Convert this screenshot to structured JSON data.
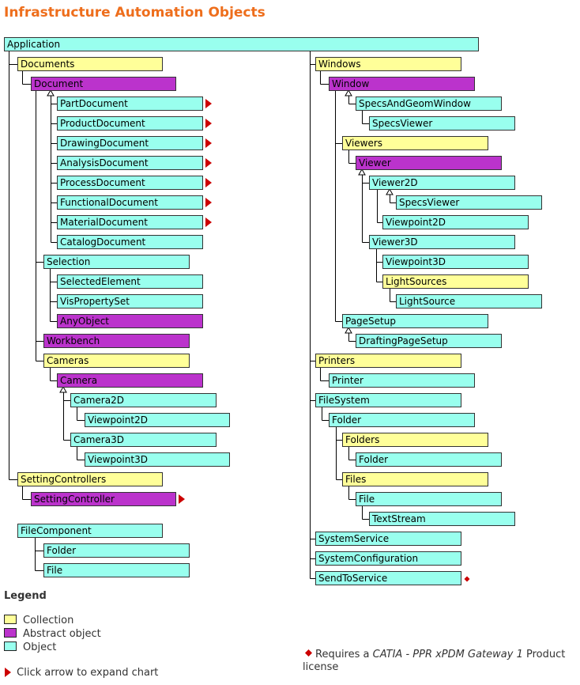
{
  "title": "Infrastructure Automation Objects",
  "colors": {
    "collection": "#ffff99",
    "abstract": "#bb33cc",
    "object": "#99ffee",
    "title": "#ee6e1c",
    "arrow": "#cc0000"
  },
  "boxes": [
    {
      "id": "application",
      "label": "Application",
      "kind": "object"
    },
    {
      "id": "documents",
      "label": "Documents",
      "kind": "collection"
    },
    {
      "id": "document",
      "label": "Document",
      "kind": "abstract"
    },
    {
      "id": "part-document",
      "label": "PartDocument",
      "kind": "object",
      "expandable": true
    },
    {
      "id": "product-document",
      "label": "ProductDocument",
      "kind": "object",
      "expandable": true
    },
    {
      "id": "drawing-document",
      "label": "DrawingDocument",
      "kind": "object",
      "expandable": true
    },
    {
      "id": "analysis-document",
      "label": "AnalysisDocument",
      "kind": "object",
      "expandable": true
    },
    {
      "id": "process-document",
      "label": "ProcessDocument",
      "kind": "object",
      "expandable": true
    },
    {
      "id": "functional-document",
      "label": "FunctionalDocument",
      "kind": "object",
      "expandable": true
    },
    {
      "id": "material-document",
      "label": "MaterialDocument",
      "kind": "object",
      "expandable": true
    },
    {
      "id": "catalog-document",
      "label": "CatalogDocument",
      "kind": "object"
    },
    {
      "id": "selection",
      "label": "Selection",
      "kind": "object"
    },
    {
      "id": "selected-element",
      "label": "SelectedElement",
      "kind": "object"
    },
    {
      "id": "vis-property-set",
      "label": "VisPropertySet",
      "kind": "object"
    },
    {
      "id": "any-object",
      "label": "AnyObject",
      "kind": "abstract"
    },
    {
      "id": "workbench",
      "label": "Workbench",
      "kind": "abstract"
    },
    {
      "id": "cameras",
      "label": "Cameras",
      "kind": "collection"
    },
    {
      "id": "camera",
      "label": "Camera",
      "kind": "abstract"
    },
    {
      "id": "camera2d",
      "label": "Camera2D",
      "kind": "object"
    },
    {
      "id": "camera2d-viewpoint2d",
      "label": "Viewpoint2D",
      "kind": "object"
    },
    {
      "id": "camera3d",
      "label": "Camera3D",
      "kind": "object"
    },
    {
      "id": "camera3d-viewpoint3d",
      "label": "Viewpoint3D",
      "kind": "object"
    },
    {
      "id": "setting-controllers",
      "label": "SettingControllers",
      "kind": "collection"
    },
    {
      "id": "setting-controller",
      "label": "SettingController",
      "kind": "abstract",
      "expandable": true
    },
    {
      "id": "file-component",
      "label": "FileComponent",
      "kind": "object"
    },
    {
      "id": "fc-folder",
      "label": "Folder",
      "kind": "object"
    },
    {
      "id": "fc-file",
      "label": "File",
      "kind": "object"
    },
    {
      "id": "windows",
      "label": "Windows",
      "kind": "collection"
    },
    {
      "id": "window",
      "label": "Window",
      "kind": "abstract"
    },
    {
      "id": "specs-and-geom-window",
      "label": "SpecsAndGeomWindow",
      "kind": "object"
    },
    {
      "id": "specs-viewer",
      "label": "SpecsViewer",
      "kind": "object"
    },
    {
      "id": "viewers",
      "label": "Viewers",
      "kind": "collection"
    },
    {
      "id": "viewer",
      "label": "Viewer",
      "kind": "abstract"
    },
    {
      "id": "viewer2d",
      "label": "Viewer2D",
      "kind": "object"
    },
    {
      "id": "viewer2d-specs-viewer",
      "label": "SpecsViewer",
      "kind": "object"
    },
    {
      "id": "viewer2d-viewpoint2d",
      "label": "Viewpoint2D",
      "kind": "object"
    },
    {
      "id": "viewer3d",
      "label": "Viewer3D",
      "kind": "object"
    },
    {
      "id": "viewer3d-viewpoint3d",
      "label": "Viewpoint3D",
      "kind": "object"
    },
    {
      "id": "light-sources",
      "label": "LightSources",
      "kind": "collection"
    },
    {
      "id": "light-source",
      "label": "LightSource",
      "kind": "object"
    },
    {
      "id": "page-setup",
      "label": "PageSetup",
      "kind": "object"
    },
    {
      "id": "drafting-page-setup",
      "label": "DraftingPageSetup",
      "kind": "object"
    },
    {
      "id": "printers",
      "label": "Printers",
      "kind": "collection"
    },
    {
      "id": "printer",
      "label": "Printer",
      "kind": "object"
    },
    {
      "id": "file-system",
      "label": "FileSystem",
      "kind": "object"
    },
    {
      "id": "fs-folder",
      "label": "Folder",
      "kind": "object"
    },
    {
      "id": "fs-folders",
      "label": "Folders",
      "kind": "collection"
    },
    {
      "id": "fs-folders-folder",
      "label": "Folder",
      "kind": "object"
    },
    {
      "id": "fs-files",
      "label": "Files",
      "kind": "collection"
    },
    {
      "id": "fs-file",
      "label": "File",
      "kind": "object"
    },
    {
      "id": "text-stream",
      "label": "TextStream",
      "kind": "object"
    },
    {
      "id": "system-service",
      "label": "SystemService",
      "kind": "object"
    },
    {
      "id": "system-configuration",
      "label": "SystemConfiguration",
      "kind": "object"
    },
    {
      "id": "send-to-service",
      "label": "SendToService",
      "kind": "object",
      "license": true
    }
  ],
  "legend": {
    "heading": "Legend",
    "collection": "Collection",
    "abstract": "Abstract object",
    "object": "Object",
    "expand": "Click arrow to expand chart",
    "license_pre": "Requires a ",
    "license_product": "CATIA - PPR xPDM Gateway 1",
    "license_post": " Product license"
  }
}
